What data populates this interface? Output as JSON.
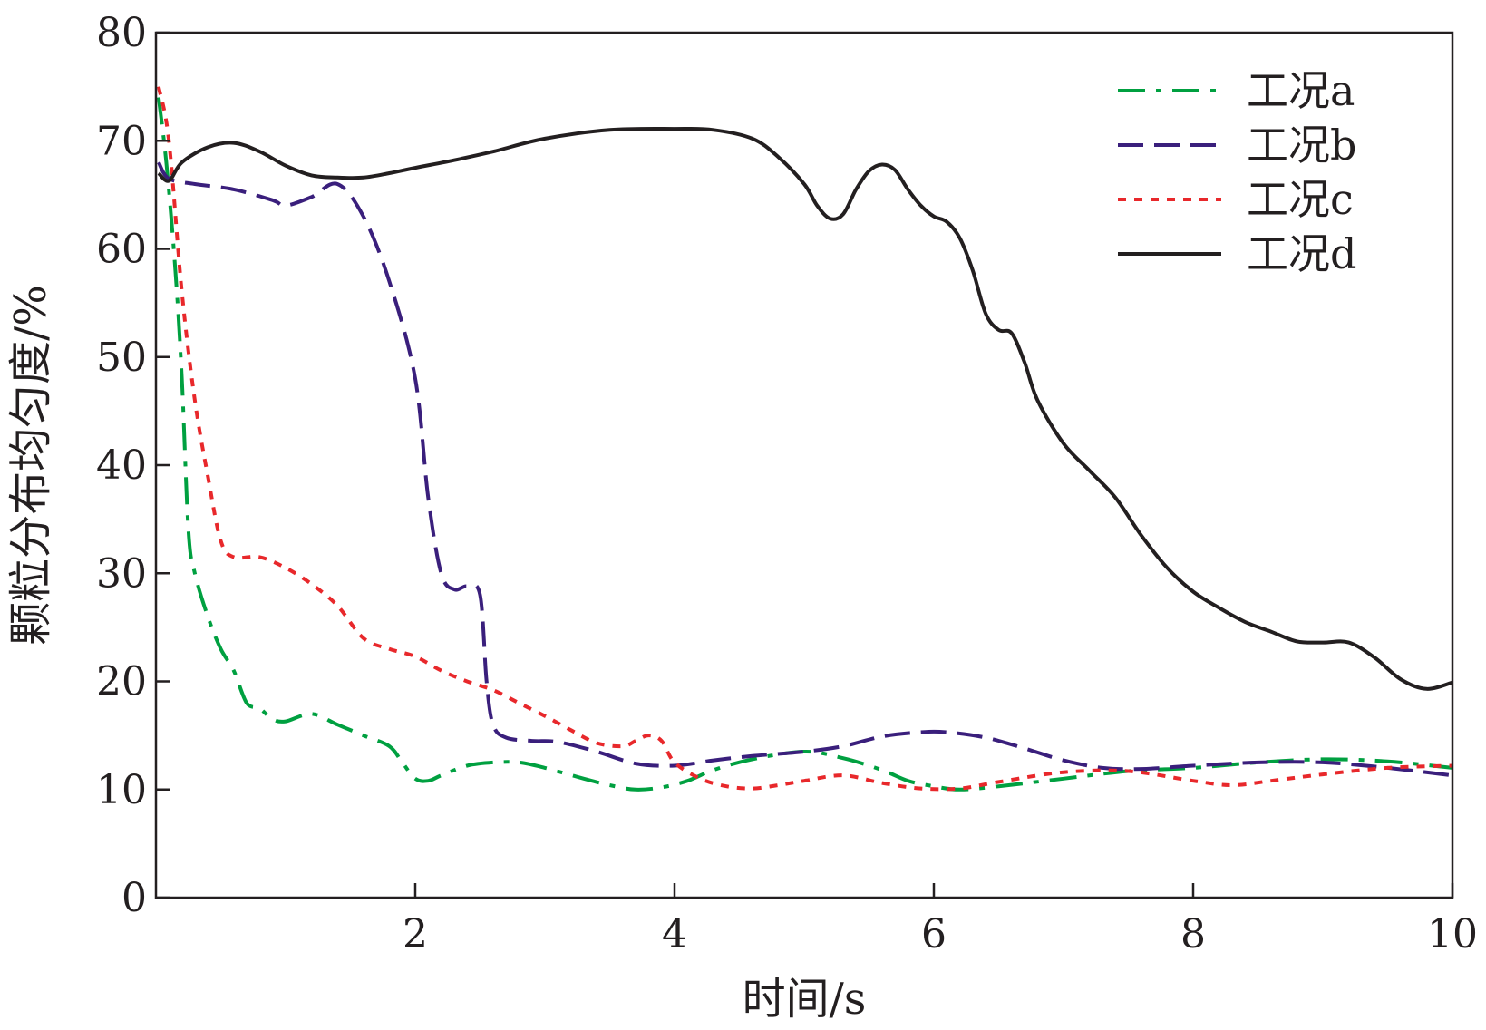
{
  "chart_data": {
    "type": "line",
    "title": "",
    "xlabel": "时间/s",
    "ylabel": "颗粒分布均匀度/%",
    "xlim": [
      0,
      10
    ],
    "ylim": [
      0,
      80
    ],
    "x_ticks": [
      2,
      4,
      6,
      8,
      10
    ],
    "x_tick_labels": [
      "2",
      "4",
      "6",
      "8",
      "10"
    ],
    "y_ticks": [
      0,
      10,
      20,
      30,
      40,
      50,
      60,
      70,
      80
    ],
    "y_tick_labels": [
      "0",
      "10",
      "20",
      "30",
      "40",
      "50",
      "60",
      "70",
      "80"
    ],
    "grid": false,
    "legend_position": "top-right",
    "series": [
      {
        "name": "工况a",
        "color": "#00a040",
        "dash": "dash-dot",
        "points": [
          [
            0.02,
            74
          ],
          [
            0.08,
            68
          ],
          [
            0.15,
            58
          ],
          [
            0.2,
            48
          ],
          [
            0.25,
            34
          ],
          [
            0.3,
            30
          ],
          [
            0.4,
            26
          ],
          [
            0.5,
            23
          ],
          [
            0.6,
            21
          ],
          [
            0.7,
            18
          ],
          [
            0.8,
            17.5
          ],
          [
            0.9,
            16.5
          ],
          [
            1.0,
            16.3
          ],
          [
            1.2,
            17
          ],
          [
            1.4,
            16
          ],
          [
            1.6,
            15
          ],
          [
            1.8,
            14
          ],
          [
            1.9,
            12.5
          ],
          [
            2.0,
            11
          ],
          [
            2.1,
            10.8
          ],
          [
            2.2,
            11.3
          ],
          [
            2.4,
            12.2
          ],
          [
            2.6,
            12.5
          ],
          [
            2.8,
            12.5
          ],
          [
            3.0,
            12
          ],
          [
            3.3,
            11
          ],
          [
            3.5,
            10.4
          ],
          [
            3.7,
            10
          ],
          [
            3.9,
            10.2
          ],
          [
            4.1,
            10.8
          ],
          [
            4.3,
            11.8
          ],
          [
            4.6,
            12.8
          ],
          [
            5.0,
            13.5
          ],
          [
            5.3,
            12.9
          ],
          [
            5.6,
            11.8
          ],
          [
            5.8,
            10.8
          ],
          [
            6.0,
            10.3
          ],
          [
            6.2,
            10
          ],
          [
            6.5,
            10.3
          ],
          [
            7.0,
            11
          ],
          [
            7.5,
            11.7
          ],
          [
            8.0,
            12
          ],
          [
            8.5,
            12.5
          ],
          [
            9.0,
            12.8
          ],
          [
            9.5,
            12.6
          ],
          [
            10.0,
            12
          ]
        ]
      },
      {
        "name": "工况b",
        "color": "#3a1f7c",
        "dash": "dashed",
        "points": [
          [
            0.02,
            68
          ],
          [
            0.1,
            66.5
          ],
          [
            0.3,
            66
          ],
          [
            0.6,
            65.5
          ],
          [
            0.9,
            64.5
          ],
          [
            1.0,
            64
          ],
          [
            1.2,
            64.8
          ],
          [
            1.4,
            66
          ],
          [
            1.6,
            63
          ],
          [
            1.8,
            57
          ],
          [
            2.0,
            48
          ],
          [
            2.1,
            37
          ],
          [
            2.2,
            30
          ],
          [
            2.3,
            28.5
          ],
          [
            2.4,
            28.8
          ],
          [
            2.5,
            28
          ],
          [
            2.55,
            20
          ],
          [
            2.6,
            16
          ],
          [
            2.7,
            14.8
          ],
          [
            2.9,
            14.5
          ],
          [
            3.1,
            14.4
          ],
          [
            3.4,
            13.5
          ],
          [
            3.7,
            12.4
          ],
          [
            4.0,
            12.2
          ],
          [
            4.3,
            12.7
          ],
          [
            4.6,
            13.1
          ],
          [
            5.0,
            13.5
          ],
          [
            5.3,
            14
          ],
          [
            5.6,
            14.9
          ],
          [
            5.9,
            15.3
          ],
          [
            6.1,
            15.3
          ],
          [
            6.4,
            14.8
          ],
          [
            6.7,
            13.8
          ],
          [
            7.0,
            12.7
          ],
          [
            7.3,
            12
          ],
          [
            7.6,
            11.9
          ],
          [
            8.0,
            12.2
          ],
          [
            8.5,
            12.5
          ],
          [
            9.0,
            12.5
          ],
          [
            9.5,
            12
          ],
          [
            10.0,
            11.3
          ]
        ]
      },
      {
        "name": "工况c",
        "color": "#e8282b",
        "dash": "dotted",
        "points": [
          [
            0.02,
            75
          ],
          [
            0.1,
            70
          ],
          [
            0.2,
            56
          ],
          [
            0.3,
            46
          ],
          [
            0.4,
            39
          ],
          [
            0.5,
            33
          ],
          [
            0.6,
            31.5
          ],
          [
            0.8,
            31.5
          ],
          [
            1.0,
            30.5
          ],
          [
            1.2,
            29
          ],
          [
            1.4,
            27
          ],
          [
            1.6,
            24
          ],
          [
            1.8,
            23
          ],
          [
            2.0,
            22.3
          ],
          [
            2.2,
            21
          ],
          [
            2.4,
            20
          ],
          [
            2.6,
            19.2
          ],
          [
            2.8,
            18
          ],
          [
            3.0,
            16.8
          ],
          [
            3.2,
            15.5
          ],
          [
            3.4,
            14.3
          ],
          [
            3.6,
            14
          ],
          [
            3.7,
            14.5
          ],
          [
            3.8,
            15
          ],
          [
            3.9,
            14.5
          ],
          [
            4.0,
            12.5
          ],
          [
            4.2,
            11
          ],
          [
            4.4,
            10.3
          ],
          [
            4.6,
            10.1
          ],
          [
            4.8,
            10.4
          ],
          [
            5.0,
            10.8
          ],
          [
            5.3,
            11.3
          ],
          [
            5.6,
            10.6
          ],
          [
            5.9,
            10.1
          ],
          [
            6.2,
            10.1
          ],
          [
            6.5,
            10.7
          ],
          [
            7.0,
            11.6
          ],
          [
            7.5,
            11.7
          ],
          [
            8.0,
            10.8
          ],
          [
            8.3,
            10.4
          ],
          [
            8.6,
            10.8
          ],
          [
            9.0,
            11.4
          ],
          [
            9.5,
            12
          ],
          [
            10.0,
            12.2
          ]
        ]
      },
      {
        "name": "工况d",
        "color": "#231f20",
        "dash": "solid",
        "points": [
          [
            0.02,
            67
          ],
          [
            0.1,
            66.3
          ],
          [
            0.2,
            68
          ],
          [
            0.4,
            69.4
          ],
          [
            0.6,
            69.8
          ],
          [
            0.8,
            69
          ],
          [
            1.0,
            67.7
          ],
          [
            1.2,
            66.8
          ],
          [
            1.4,
            66.6
          ],
          [
            1.6,
            66.6
          ],
          [
            1.8,
            67
          ],
          [
            2.0,
            67.5
          ],
          [
            2.3,
            68.2
          ],
          [
            2.6,
            69
          ],
          [
            3.0,
            70.2
          ],
          [
            3.5,
            71
          ],
          [
            4.0,
            71.1
          ],
          [
            4.3,
            71
          ],
          [
            4.6,
            70.2
          ],
          [
            4.8,
            68.5
          ],
          [
            5.0,
            66
          ],
          [
            5.1,
            64
          ],
          [
            5.2,
            62.8
          ],
          [
            5.3,
            63.2
          ],
          [
            5.4,
            65.5
          ],
          [
            5.5,
            67.2
          ],
          [
            5.6,
            67.8
          ],
          [
            5.7,
            67.3
          ],
          [
            5.8,
            65.5
          ],
          [
            5.9,
            64
          ],
          [
            6.0,
            63
          ],
          [
            6.1,
            62.5
          ],
          [
            6.2,
            61
          ],
          [
            6.3,
            58
          ],
          [
            6.4,
            54
          ],
          [
            6.5,
            52.5
          ],
          [
            6.6,
            52.2
          ],
          [
            6.7,
            49.5
          ],
          [
            6.8,
            46
          ],
          [
            7.0,
            42
          ],
          [
            7.2,
            39.5
          ],
          [
            7.4,
            37
          ],
          [
            7.6,
            33.5
          ],
          [
            7.8,
            30.5
          ],
          [
            8.0,
            28.3
          ],
          [
            8.2,
            26.8
          ],
          [
            8.4,
            25.5
          ],
          [
            8.6,
            24.6
          ],
          [
            8.8,
            23.7
          ],
          [
            9.0,
            23.6
          ],
          [
            9.2,
            23.6
          ],
          [
            9.4,
            22.2
          ],
          [
            9.6,
            20.2
          ],
          [
            9.8,
            19.3
          ],
          [
            10.0,
            19.9
          ]
        ]
      }
    ]
  }
}
